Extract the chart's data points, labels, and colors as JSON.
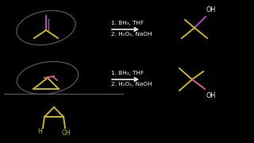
{
  "bg_color": "#000000",
  "reaction1_label1": "1. BH₃, THF",
  "reaction1_label2": "2. H₂O₂, NaOH",
  "reaction2_label1": "1. BH₃, THF",
  "reaction2_label2": "2. H₂O₂, NaOH",
  "text_color": "#ffffff",
  "yellow": "#c8b820",
  "purple": "#b848c8",
  "pink": "#d06090",
  "ellipse_color": "#505050"
}
